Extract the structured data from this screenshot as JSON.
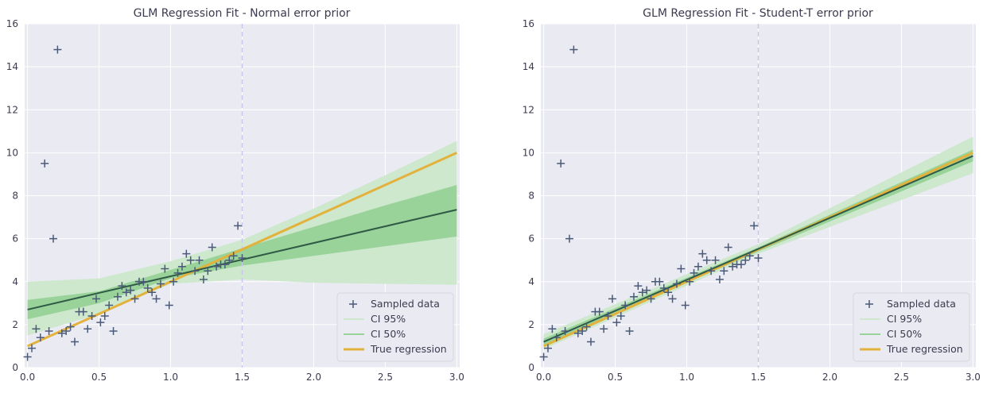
{
  "chart_data": [
    {
      "type": "scatter",
      "title": "GLM Regression Fit - Normal error prior",
      "xlabel": "",
      "ylabel": "",
      "xlim": [
        -0.02,
        3.02
      ],
      "ylim": [
        0,
        16
      ],
      "xticks": [
        "0.0",
        "0.5",
        "1.0",
        "1.5",
        "2.0",
        "2.5",
        "3.0"
      ],
      "yticks": [
        "0",
        "2",
        "4",
        "6",
        "8",
        "10",
        "12",
        "14",
        "16"
      ],
      "vline_x": 1.5,
      "grid": true,
      "legend_position": "lower-right",
      "legend": [
        "Sampled data",
        "CI 95%",
        "CI 50%",
        "True regression"
      ],
      "points": {
        "x": [
          0.0,
          0.03,
          0.06,
          0.09,
          0.12,
          0.15,
          0.18,
          0.21,
          0.24,
          0.27,
          0.3,
          0.33,
          0.36,
          0.39,
          0.42,
          0.45,
          0.48,
          0.51,
          0.54,
          0.57,
          0.6,
          0.63,
          0.66,
          0.69,
          0.72,
          0.75,
          0.78,
          0.81,
          0.84,
          0.87,
          0.9,
          0.93,
          0.96,
          0.99,
          1.02,
          1.05,
          1.08,
          1.11,
          1.14,
          1.17,
          1.2,
          1.23,
          1.26,
          1.29,
          1.32,
          1.35,
          1.38,
          1.41,
          1.44,
          1.47,
          1.5
        ],
        "y": [
          0.5,
          0.9,
          1.8,
          1.4,
          9.5,
          1.7,
          6.0,
          14.8,
          1.6,
          1.7,
          1.9,
          1.2,
          2.6,
          2.6,
          1.8,
          2.4,
          3.2,
          2.1,
          2.4,
          2.9,
          1.7,
          3.3,
          3.8,
          3.5,
          3.6,
          3.2,
          4.0,
          4.0,
          3.7,
          3.5,
          3.2,
          3.9,
          4.6,
          2.9,
          4.0,
          4.4,
          4.7,
          5.3,
          5.0,
          4.5,
          5.0,
          4.1,
          4.5,
          5.6,
          4.7,
          4.8,
          4.8,
          5.0,
          5.2,
          6.6,
          5.1
        ]
      },
      "ci95": {
        "x": [
          0.0,
          0.5,
          1.0,
          1.5,
          2.0,
          2.5,
          3.0
        ],
        "lower": [
          1.5,
          2.5,
          3.9,
          4.1,
          3.95,
          3.9,
          3.85
        ],
        "upper": [
          4.0,
          4.15,
          4.95,
          5.95,
          7.4,
          8.95,
          10.55
        ]
      },
      "ci50": {
        "x": [
          0.0,
          0.5,
          1.0,
          1.5,
          2.0,
          2.5,
          3.0
        ],
        "lower": [
          2.25,
          3.0,
          4.15,
          4.75,
          5.2,
          5.65,
          6.1
        ],
        "upper": [
          3.15,
          3.55,
          4.55,
          5.55,
          6.55,
          7.55,
          8.5
        ]
      },
      "mean_line": {
        "x": [
          0.0,
          3.0
        ],
        "y": [
          2.7,
          7.35
        ]
      },
      "true_regression": {
        "x": [
          0.0,
          3.0
        ],
        "y": [
          1.0,
          10.0
        ]
      }
    },
    {
      "type": "scatter",
      "title": "GLM Regression Fit - Student-T error prior",
      "xlabel": "",
      "ylabel": "",
      "xlim": [
        -0.02,
        3.02
      ],
      "ylim": [
        0,
        16
      ],
      "xticks": [
        "0.0",
        "0.5",
        "1.0",
        "1.5",
        "2.0",
        "2.5",
        "3.0"
      ],
      "yticks": [
        "0",
        "2",
        "4",
        "6",
        "8",
        "10",
        "12",
        "14",
        "16"
      ],
      "vline_x": 1.5,
      "grid": true,
      "legend_position": "lower-right",
      "legend": [
        "Sampled data",
        "CI 95%",
        "CI 50%",
        "True regression"
      ],
      "points": {
        "x": [
          0.0,
          0.03,
          0.06,
          0.09,
          0.12,
          0.15,
          0.18,
          0.21,
          0.24,
          0.27,
          0.3,
          0.33,
          0.36,
          0.39,
          0.42,
          0.45,
          0.48,
          0.51,
          0.54,
          0.57,
          0.6,
          0.63,
          0.66,
          0.69,
          0.72,
          0.75,
          0.78,
          0.81,
          0.84,
          0.87,
          0.9,
          0.93,
          0.96,
          0.99,
          1.02,
          1.05,
          1.08,
          1.11,
          1.14,
          1.17,
          1.2,
          1.23,
          1.26,
          1.29,
          1.32,
          1.35,
          1.38,
          1.41,
          1.44,
          1.47,
          1.5
        ],
        "y": [
          0.5,
          0.9,
          1.8,
          1.4,
          9.5,
          1.7,
          6.0,
          14.8,
          1.6,
          1.7,
          1.9,
          1.2,
          2.6,
          2.6,
          1.8,
          2.4,
          3.2,
          2.1,
          2.4,
          2.9,
          1.7,
          3.3,
          3.8,
          3.5,
          3.6,
          3.2,
          4.0,
          4.0,
          3.7,
          3.5,
          3.2,
          3.9,
          4.6,
          2.9,
          4.0,
          4.4,
          4.7,
          5.3,
          5.0,
          4.5,
          5.0,
          4.1,
          4.5,
          5.6,
          4.7,
          4.8,
          4.8,
          5.0,
          5.2,
          6.6,
          5.1
        ]
      },
      "ci95": {
        "x": [
          0.0,
          1.5,
          3.0
        ],
        "lower": [
          0.85,
          5.3,
          9.05
        ],
        "upper": [
          1.55,
          5.75,
          10.75
        ]
      },
      "ci50": {
        "x": [
          0.0,
          1.5,
          3.0
        ],
        "lower": [
          1.05,
          5.4,
          9.6
        ],
        "upper": [
          1.35,
          5.6,
          10.15
        ]
      },
      "mean_line": {
        "x": [
          0.0,
          3.0
        ],
        "y": [
          1.2,
          9.85
        ]
      },
      "true_regression": {
        "x": [
          0.0,
          3.0
        ],
        "y": [
          1.0,
          10.0
        ]
      }
    }
  ],
  "colors": {
    "background": "#eaeaf2",
    "grid": "#ffffff",
    "points": "#4a5a78",
    "ci95": "#cde8cd",
    "ci50": "#99d399",
    "mean_line": "#2f5a45",
    "true_regression": "#e3b23c",
    "vline": "#c8c8ee"
  }
}
